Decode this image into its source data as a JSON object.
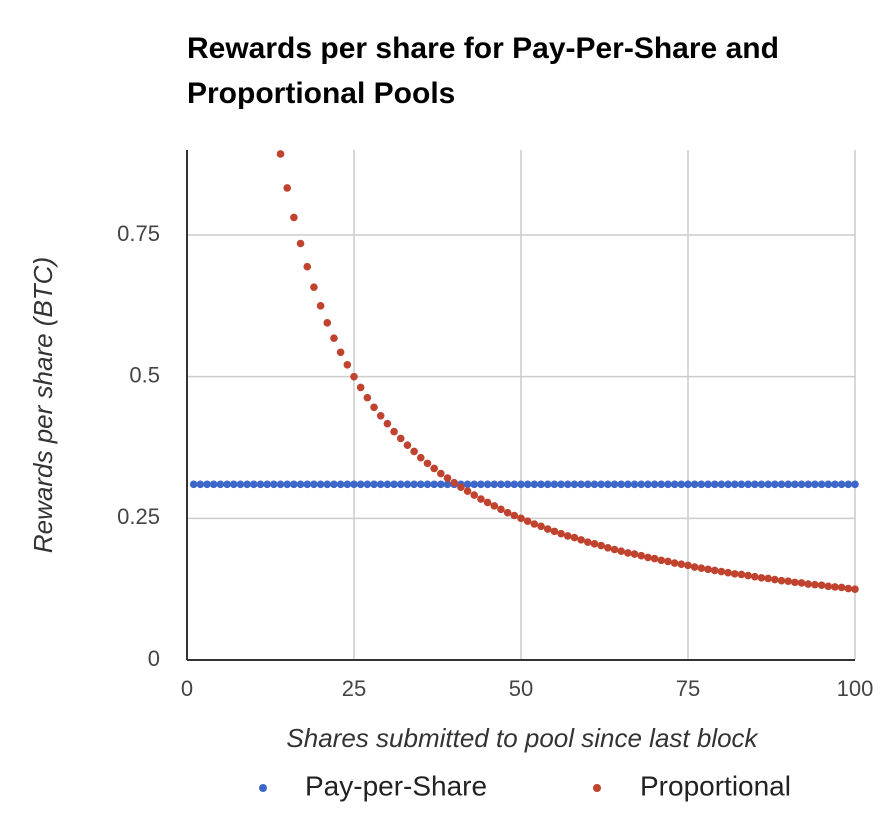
{
  "chart_data": {
    "type": "scatter",
    "title": "Rewards per share for Pay-Per-Share and Proportional Pools",
    "x_label": "Shares submitted to pool since last block",
    "y_label": "Rewards per share (BTC)",
    "x": [
      1,
      2,
      3,
      4,
      5,
      6,
      7,
      8,
      9,
      10,
      11,
      12,
      13,
      14,
      15,
      16,
      17,
      18,
      19,
      20,
      21,
      22,
      23,
      24,
      25,
      26,
      27,
      28,
      29,
      30,
      31,
      32,
      33,
      34,
      35,
      36,
      37,
      38,
      39,
      40,
      41,
      42,
      43,
      44,
      45,
      46,
      47,
      48,
      49,
      50,
      51,
      52,
      53,
      54,
      55,
      56,
      57,
      58,
      59,
      60,
      61,
      62,
      63,
      64,
      65,
      66,
      67,
      68,
      69,
      70,
      71,
      72,
      73,
      74,
      75,
      76,
      77,
      78,
      79,
      80,
      81,
      82,
      83,
      84,
      85,
      86,
      87,
      88,
      89,
      90,
      91,
      92,
      93,
      94,
      95,
      96,
      97,
      98,
      99,
      100
    ],
    "series": [
      {
        "name": "Pay-per-Share",
        "color": "#3d67c9",
        "values": [
          0.31,
          0.31,
          0.31,
          0.31,
          0.31,
          0.31,
          0.31,
          0.31,
          0.31,
          0.31,
          0.31,
          0.31,
          0.31,
          0.31,
          0.31,
          0.31,
          0.31,
          0.31,
          0.31,
          0.31,
          0.31,
          0.31,
          0.31,
          0.31,
          0.31,
          0.31,
          0.31,
          0.31,
          0.31,
          0.31,
          0.31,
          0.31,
          0.31,
          0.31,
          0.31,
          0.31,
          0.31,
          0.31,
          0.31,
          0.31,
          0.31,
          0.31,
          0.31,
          0.31,
          0.31,
          0.31,
          0.31,
          0.31,
          0.31,
          0.31,
          0.31,
          0.31,
          0.31,
          0.31,
          0.31,
          0.31,
          0.31,
          0.31,
          0.31,
          0.31,
          0.31,
          0.31,
          0.31,
          0.31,
          0.31,
          0.31,
          0.31,
          0.31,
          0.31,
          0.31,
          0.31,
          0.31,
          0.31,
          0.31,
          0.31,
          0.31,
          0.31,
          0.31,
          0.31,
          0.31,
          0.31,
          0.31,
          0.31,
          0.31,
          0.31,
          0.31,
          0.31,
          0.31,
          0.31,
          0.31,
          0.31,
          0.31,
          0.31,
          0.31,
          0.31,
          0.31,
          0.31,
          0.31,
          0.31,
          0.31
        ]
      },
      {
        "name": "Proportional",
        "color": "#c0432f",
        "values": [
          null,
          null,
          null,
          null,
          null,
          null,
          null,
          null,
          null,
          null,
          null,
          null,
          null,
          0.893,
          0.833,
          0.781,
          0.735,
          0.694,
          0.658,
          0.625,
          0.595,
          0.568,
          0.543,
          0.521,
          0.5,
          0.481,
          0.463,
          0.446,
          0.431,
          0.417,
          0.403,
          0.391,
          0.379,
          0.368,
          0.357,
          0.347,
          0.338,
          0.329,
          0.321,
          0.313,
          0.305,
          0.298,
          0.291,
          0.284,
          0.278,
          0.272,
          0.266,
          0.26,
          0.255,
          0.25,
          0.245,
          0.24,
          0.236,
          0.231,
          0.227,
          0.223,
          0.219,
          0.216,
          0.212,
          0.208,
          0.205,
          0.202,
          0.198,
          0.195,
          0.192,
          0.189,
          0.187,
          0.184,
          0.181,
          0.179,
          0.176,
          0.174,
          0.171,
          0.169,
          0.167,
          0.164,
          0.162,
          0.16,
          0.158,
          0.156,
          0.154,
          0.152,
          0.151,
          0.149,
          0.147,
          0.145,
          0.144,
          0.142,
          0.14,
          0.139,
          0.137,
          0.136,
          0.134,
          0.133,
          0.132,
          0.13,
          0.129,
          0.128,
          0.126,
          0.125
        ]
      }
    ],
    "xlim": [
      0,
      100
    ],
    "xticks": [
      0,
      25,
      50,
      75,
      100
    ],
    "ylim": [
      0,
      0.9
    ],
    "yticks": [
      0,
      0.25,
      0.5,
      0.75
    ],
    "grid": true
  }
}
